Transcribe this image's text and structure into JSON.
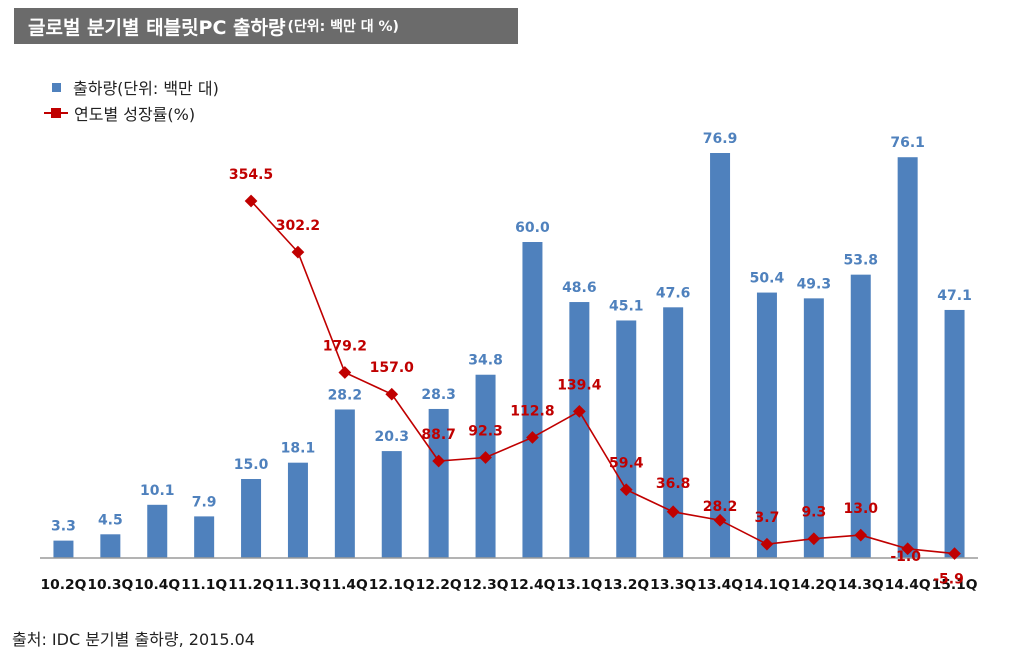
{
  "header": {
    "title": "글로벌 분기별 태블릿PC 출하량",
    "unit": "(단위: 백만 대 %)"
  },
  "legend": {
    "bar_label": "출하량(단위: 백만 대)",
    "line_label": "연도별 성장률(%)"
  },
  "source": "출처: IDC 분기별 출하량, 2015.04",
  "colors": {
    "bar": "#4f81bd",
    "bar_label": "#4f81bd",
    "line": "#c00000"
  },
  "chart_data": {
    "type": "bar",
    "categories": [
      "10.2Q",
      "10.3Q",
      "10.4Q",
      "11.1Q",
      "11.2Q",
      "11.3Q",
      "11.4Q",
      "12.1Q",
      "12.2Q",
      "12.3Q",
      "12.4Q",
      "13.1Q",
      "13.2Q",
      "13.3Q",
      "13.4Q",
      "14.1Q",
      "14.2Q",
      "14.3Q",
      "14.4Q",
      "15.1Q"
    ],
    "series": [
      {
        "name": "출하량(단위: 백만 대)",
        "type": "bar",
        "values": [
          3.3,
          4.5,
          10.1,
          7.9,
          15.0,
          18.1,
          28.2,
          20.3,
          28.3,
          34.8,
          60.0,
          48.6,
          45.1,
          47.6,
          76.9,
          50.4,
          49.3,
          53.8,
          76.1,
          47.1
        ]
      },
      {
        "name": "연도별 성장률(%)",
        "type": "line",
        "values": [
          null,
          null,
          null,
          null,
          354.5,
          302.2,
          179.2,
          157.0,
          88.7,
          92.3,
          112.8,
          139.4,
          59.4,
          36.8,
          28.2,
          3.7,
          9.3,
          13.0,
          -1.0,
          -5.9
        ]
      }
    ],
    "grid": false,
    "legend_position": "top-left"
  }
}
